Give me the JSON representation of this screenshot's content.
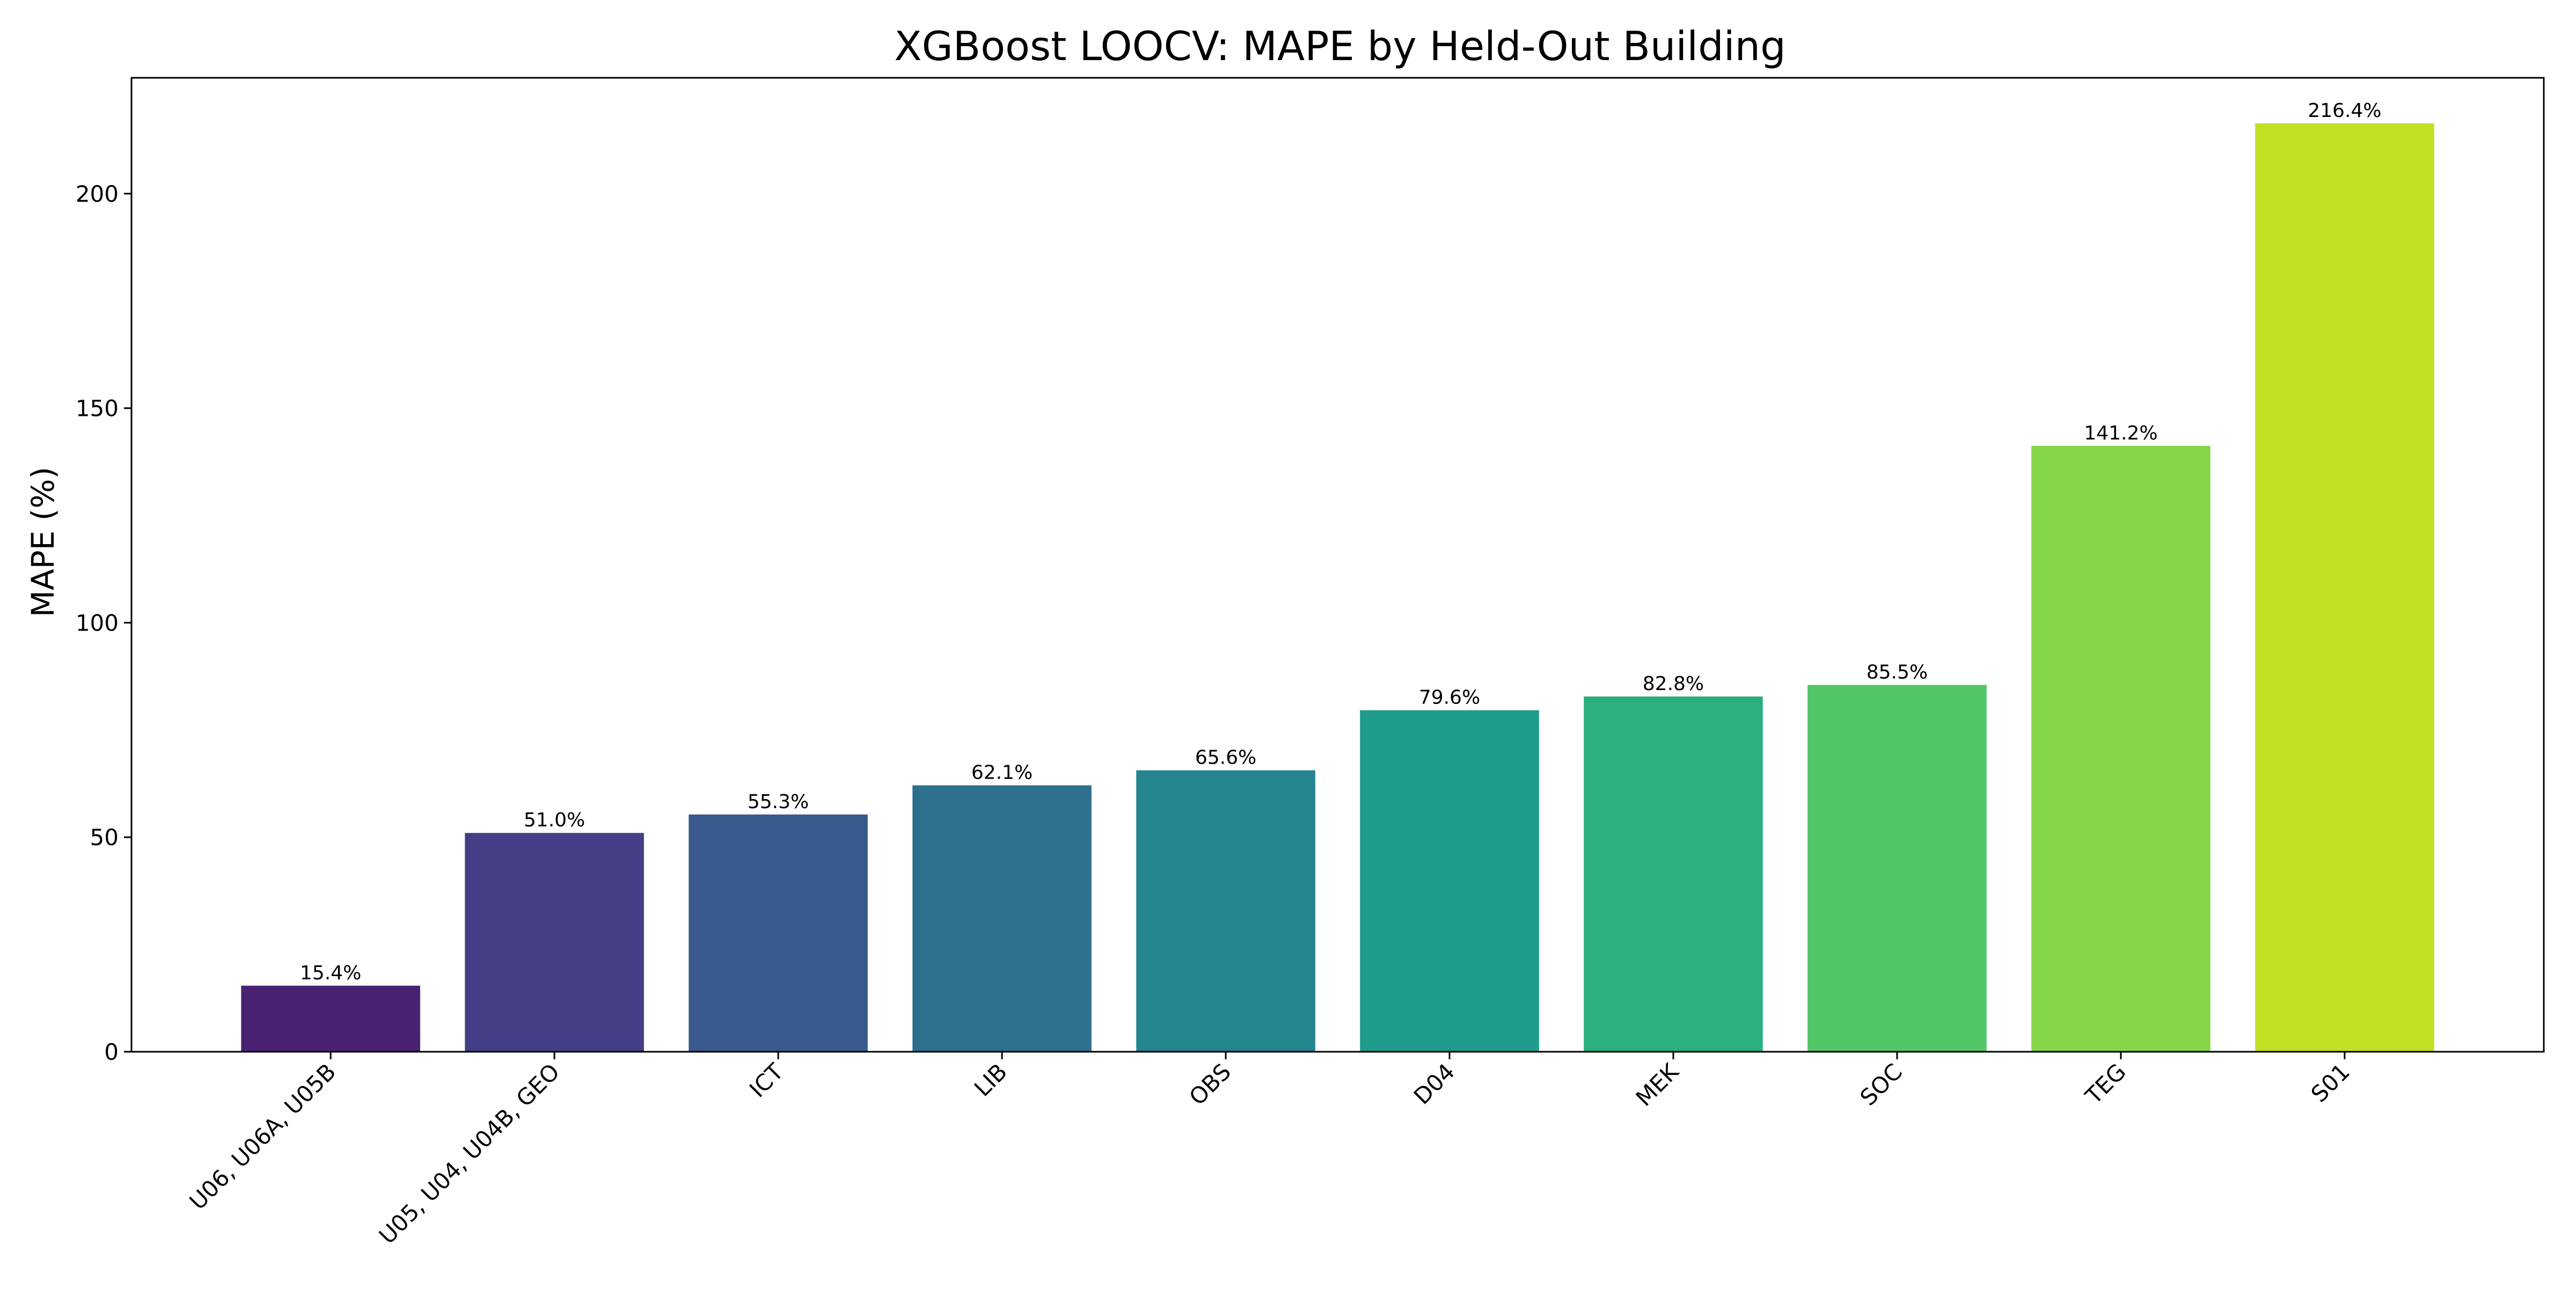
{
  "chart_data": {
    "type": "bar",
    "title": "XGBoost LOOCV: MAPE by Held-Out Building",
    "xlabel": "",
    "ylabel": "MAPE (%)",
    "ylim": [
      0,
      227
    ],
    "yticks": [
      0,
      50,
      100,
      150,
      200
    ],
    "grid": false,
    "legend": "none",
    "categories": [
      "U06, U06A, U05B",
      "U05, U04, U04B, GEO",
      "ICT",
      "LIB",
      "OBS",
      "D04",
      "MEK",
      "SOC",
      "TEG",
      "S01"
    ],
    "values": [
      15.4,
      51.0,
      55.3,
      62.1,
      65.6,
      79.6,
      82.8,
      85.5,
      141.2,
      216.4
    ],
    "data_labels": [
      "15.4%",
      "51.0%",
      "55.3%",
      "62.1%",
      "65.6%",
      "79.6%",
      "82.8%",
      "85.5%",
      "141.2%",
      "216.4%"
    ],
    "colors": [
      "#482173",
      "#433e85",
      "#38598c",
      "#2d708e",
      "#25858e",
      "#1e9b8a",
      "#2ab07f",
      "#52c569",
      "#86d549",
      "#c2df23"
    ]
  }
}
